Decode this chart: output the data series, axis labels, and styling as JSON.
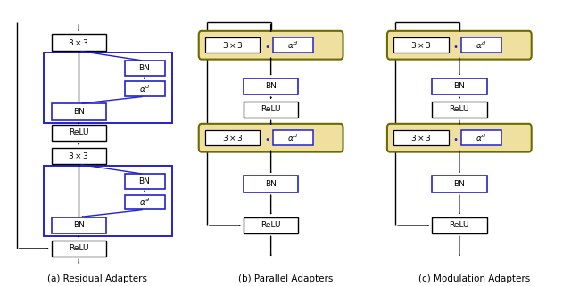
{
  "bg_color": "#ffffff",
  "black": "#000000",
  "blue": "#2222cc",
  "dark_olive": "#6b6b00",
  "tan_bg": "#f0e0a0",
  "caption_a": "(a) Residual Adapters",
  "caption_b": "(b) Parallel Adapters",
  "caption_c": "(c) Modulation Adapters"
}
